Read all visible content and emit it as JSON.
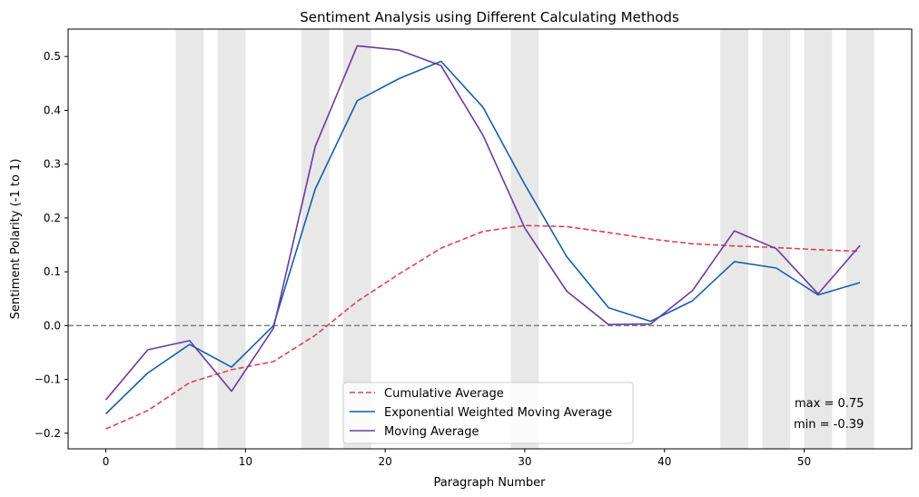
{
  "chart_data": {
    "type": "line",
    "title": "Sentiment Analysis using Different Calculating Methods",
    "xlabel": "Paragraph Number",
    "ylabel": "Sentiment Polarity (-1 to 1)",
    "xlim": [
      -2.7,
      57.7
    ],
    "ylim": [
      -0.229,
      0.551
    ],
    "xticks": [
      0,
      10,
      20,
      30,
      40,
      50
    ],
    "yticks": [
      -0.2,
      -0.1,
      0.0,
      0.1,
      0.2,
      0.3,
      0.4,
      0.5
    ],
    "ytick_labels": [
      "−0.2",
      "−0.1",
      "0.0",
      "0.1",
      "0.2",
      "0.3",
      "0.4",
      "0.5"
    ],
    "grid": false,
    "legend_position": "lower-center",
    "zero_line": {
      "y": 0.0,
      "color": "#808080",
      "style": "dashed"
    },
    "shaded_regions": [
      [
        5,
        7
      ],
      [
        8,
        10
      ],
      [
        14,
        16
      ],
      [
        17,
        19
      ],
      [
        29,
        31
      ],
      [
        44,
        46
      ],
      [
        47,
        49
      ],
      [
        50,
        52
      ],
      [
        53,
        55
      ]
    ],
    "shade_color": "#d9d9d9",
    "series": [
      {
        "name": "Cumulative Average",
        "color": "#dc4452",
        "style": "dashed",
        "x": [
          0,
          3,
          6,
          9,
          12,
          15,
          18,
          21,
          24,
          27,
          30,
          33,
          36,
          39,
          42,
          45,
          48,
          51,
          54
        ],
        "y": [
          -0.192,
          -0.158,
          -0.106,
          -0.082,
          -0.067,
          -0.018,
          0.045,
          0.096,
          0.144,
          0.175,
          0.186,
          0.184,
          0.173,
          0.161,
          0.152,
          0.148,
          0.145,
          0.141,
          0.138
        ]
      },
      {
        "name": "Exponential Weighted Moving Average",
        "color": "#1560aa",
        "style": "solid",
        "x": [
          0,
          3,
          6,
          9,
          12,
          15,
          18,
          21,
          24,
          27,
          30,
          33,
          36,
          39,
          42,
          45,
          48,
          51,
          54
        ],
        "y": [
          -0.164,
          -0.088,
          -0.035,
          -0.077,
          0.0,
          0.254,
          0.418,
          0.459,
          0.491,
          0.406,
          0.262,
          0.128,
          0.033,
          0.008,
          0.046,
          0.119,
          0.107,
          0.057,
          0.08
        ]
      },
      {
        "name": "Moving Average",
        "color": "#6a3aa2",
        "style": "solid",
        "x": [
          0,
          3,
          6,
          9,
          12,
          15,
          18,
          21,
          24,
          27,
          30,
          33,
          36,
          39,
          42,
          45,
          48,
          51,
          54
        ],
        "y": [
          -0.138,
          -0.045,
          -0.028,
          -0.122,
          -0.005,
          0.333,
          0.52,
          0.512,
          0.483,
          0.354,
          0.181,
          0.064,
          0.002,
          0.003,
          0.065,
          0.176,
          0.143,
          0.059,
          0.149
        ]
      }
    ],
    "annotations": [
      "max = 0.75",
      "min = -0.39"
    ]
  }
}
